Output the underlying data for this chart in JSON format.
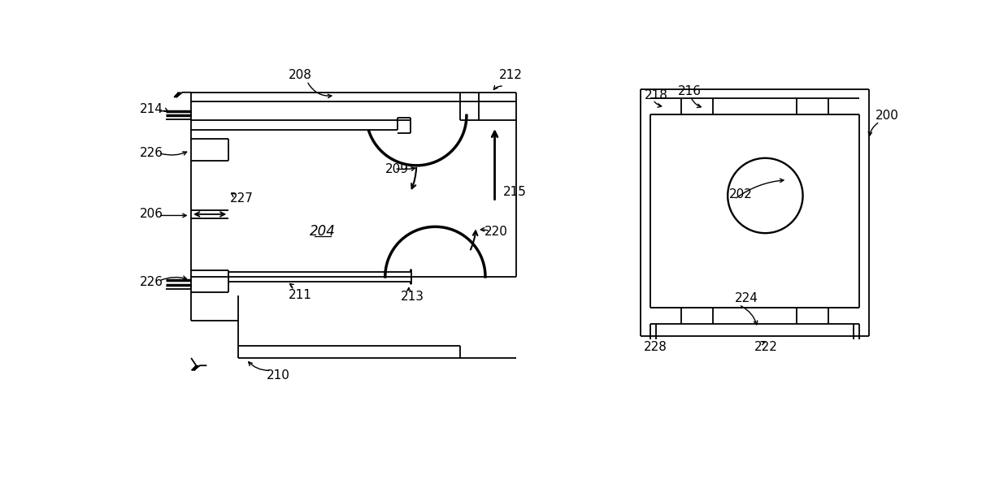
{
  "bg_color": "#ffffff",
  "line_color": "#000000",
  "thick_line": 2.5,
  "thin_line": 1.3,
  "label_fontsize": 11
}
